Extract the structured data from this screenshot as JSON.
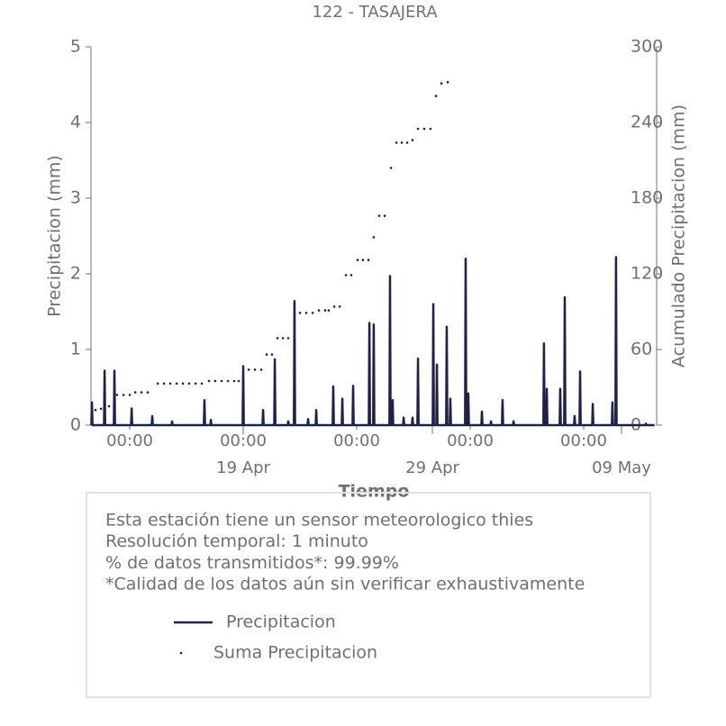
{
  "chart_data": {
    "type": "line",
    "title": "122 - TASAJERA",
    "xlabel": "Tiempo",
    "ylabel": "Precipitacion (mm)",
    "y2label": "Acumulado Precipitacion (mm)",
    "xlim": [
      10.95,
      40.81
    ],
    "xticks": [
      {
        "value": 13,
        "label": "00:00"
      },
      {
        "value": 19,
        "label": "00:00"
      },
      {
        "value": 25,
        "label": "00:00"
      },
      {
        "value": 31,
        "label": "00:00"
      },
      {
        "value": 37,
        "label": "00:00"
      }
    ],
    "xticks_major": [
      {
        "value": 19,
        "label": "19 Apr"
      },
      {
        "value": 29,
        "label": "29 Apr"
      },
      {
        "value": 39,
        "label": "09 May"
      }
    ],
    "ylim": [
      0,
      5
    ],
    "yticks": [
      0,
      1,
      2,
      3,
      4,
      5
    ],
    "y2lim": [
      0,
      300
    ],
    "y2ticks": [
      0,
      60,
      120,
      180,
      240,
      300
    ],
    "series": [
      {
        "name": "Precipitacion",
        "color": "#1f2145",
        "style": "line",
        "x": [
          10.97,
          11.0,
          11.03,
          11.64,
          11.67,
          11.7,
          12.16,
          12.19,
          12.22,
          13.07,
          13.1,
          13.13,
          14.16,
          14.19,
          14.22,
          15.21,
          15.24,
          15.27,
          16.92,
          16.95,
          16.98,
          17.26,
          17.29,
          17.32,
          18.97,
          19.0,
          19.03,
          20.02,
          20.05,
          20.08,
          20.64,
          20.67,
          20.7,
          21.35,
          21.38,
          21.41,
          21.68,
          21.71,
          21.74,
          22.4,
          22.43,
          22.46,
          22.83,
          22.86,
          22.89,
          23.73,
          23.76,
          23.79,
          24.21,
          24.24,
          24.27,
          24.78,
          24.81,
          24.84,
          25.64,
          25.67,
          25.7,
          25.87,
          25.9,
          25.93,
          26.73,
          26.76,
          26.79,
          26.87,
          26.9,
          26.93,
          27.45,
          27.48,
          27.51,
          27.92,
          27.95,
          27.98,
          28.21,
          28.24,
          28.27,
          29.02,
          29.05,
          29.08,
          29.21,
          29.24,
          29.27,
          29.73,
          29.76,
          29.79,
          29.92,
          29.95,
          29.98,
          30.73,
          30.76,
          30.79,
          30.87,
          30.9,
          30.93,
          31.59,
          31.62,
          31.65,
          32.07,
          32.1,
          32.13,
          32.68,
          32.71,
          32.74,
          33.26,
          33.29,
          33.32,
          34.87,
          34.9,
          34.93,
          35.02,
          35.05,
          35.08,
          35.73,
          35.76,
          35.79,
          35.97,
          36.0,
          36.03,
          36.49,
          36.52,
          36.55,
          36.78,
          36.81,
          36.84,
          37.45,
          37.48,
          37.51,
          38.49,
          38.52,
          38.55,
          38.68,
          38.71,
          38.74,
          40.26,
          40.29,
          40.32,
          40.75
        ],
        "values": [
          0,
          0.3,
          0,
          0,
          0.72,
          0,
          0,
          0.72,
          0,
          0,
          0.22,
          0,
          0,
          0.12,
          0,
          0,
          0.05,
          0,
          0,
          0.33,
          0,
          0,
          0.07,
          0,
          0,
          0.78,
          0,
          0,
          0.2,
          0,
          0,
          0.87,
          0,
          0,
          0.05,
          0,
          0,
          1.64,
          0,
          0,
          0.08,
          0,
          0,
          0.2,
          0,
          0,
          0.51,
          0,
          0,
          0.35,
          0,
          0,
          0.52,
          0,
          0,
          1.35,
          0,
          0,
          1.33,
          0,
          0,
          1.97,
          0,
          0,
          0.33,
          0,
          0,
          0.1,
          0,
          0,
          0.1,
          0,
          0,
          0.88,
          0,
          0,
          1.6,
          0,
          0,
          0.8,
          0,
          0,
          1.3,
          0,
          0,
          0.35,
          0,
          0,
          2.2,
          0,
          0,
          0.42,
          0,
          0,
          0.18,
          0,
          0,
          0.05,
          0,
          0,
          0.33,
          0,
          0,
          0.05,
          0,
          0,
          1.08,
          0,
          0,
          0.48,
          0,
          0,
          0.48,
          0,
          0,
          1.69,
          0,
          0,
          0.12,
          0,
          0,
          0.71,
          0,
          0,
          0.28,
          0,
          0,
          0.3,
          0,
          0,
          2.22,
          0,
          0,
          0.02,
          0,
          0
        ]
      },
      {
        "name": "Suma Precipitacion",
        "color": "#1f2145",
        "style": "points",
        "axis": "y2",
        "x": [
          11.0,
          11.19,
          11.48,
          11.67,
          11.9,
          12.33,
          12.67,
          13.0,
          13.29,
          13.62,
          13.95,
          14.48,
          14.81,
          15.14,
          15.48,
          15.81,
          16.14,
          16.48,
          16.81,
          17.19,
          17.52,
          17.86,
          18.19,
          18.52,
          18.76,
          19.29,
          19.62,
          19.95,
          20.24,
          20.52,
          20.81,
          21.1,
          21.38,
          22.0,
          22.33,
          22.67,
          23.0,
          23.33,
          23.52,
          23.81,
          24.1,
          24.43,
          24.71,
          25.05,
          25.33,
          25.62,
          25.9,
          26.19,
          26.48,
          26.81,
          27.1,
          27.38,
          27.67,
          27.95,
          28.24,
          28.57,
          28.9,
          29.19,
          29.48,
          29.81
        ],
        "values": [
          11,
          12,
          13,
          14,
          15,
          24,
          24,
          24,
          26,
          26,
          26,
          33,
          33,
          33,
          33,
          33,
          33,
          33,
          33,
          35,
          35,
          35,
          35,
          35,
          35,
          44,
          44,
          44,
          56,
          56,
          69,
          69,
          69,
          89,
          89,
          89,
          91,
          91,
          91,
          94,
          94,
          119,
          119,
          131,
          131,
          131,
          149,
          166,
          166,
          204,
          224,
          224,
          224,
          226,
          235,
          235,
          235,
          261,
          271,
          272
        ]
      }
    ],
    "annotations": [
      "Esta estación tiene un sensor meteorologico thies",
      "Resolución temporal: 1 minuto",
      "% de datos transmitidos*: 99.99%",
      "*Calidad de los datos aún sin verificar exhaustivamente"
    ]
  }
}
